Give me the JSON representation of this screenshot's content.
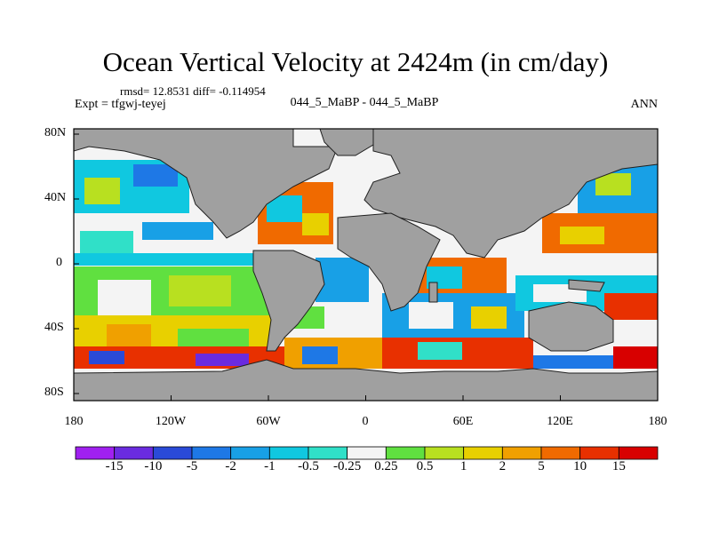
{
  "title": "Ocean Vertical Velocity at 2424m (in cm/day)",
  "stats": "rmsd= 12.8531 diff= -0.114954",
  "experiment": "Expt = tfgwj-teyej",
  "case_label": "044_5_MaBP - 044_5_MaBP",
  "season": "ANN",
  "axes": {
    "x_ticks": [
      "180",
      "120W",
      "60W",
      "0",
      "60E",
      "120E",
      "180"
    ],
    "y_ticks": [
      "80N",
      "40N",
      "0",
      "40S",
      "80S"
    ]
  },
  "colorbar": {
    "labels": [
      "-15",
      "-10",
      "-5",
      "-2",
      "-1",
      "-0.5",
      "-0.25",
      "0.25",
      "0.5",
      "1",
      "2",
      "5",
      "10",
      "15"
    ],
    "colors": [
      "#a020f0",
      "#6a2be0",
      "#2a4ad8",
      "#1e78e6",
      "#18a0e6",
      "#10c8e0",
      "#30e0c8",
      "#f4f4f4",
      "#60e040",
      "#b8e020",
      "#e8d000",
      "#f0a000",
      "#f06a00",
      "#e83000",
      "#d80000"
    ]
  },
  "colors": {
    "land": "#a0a0a0",
    "coast": "#202020"
  }
}
